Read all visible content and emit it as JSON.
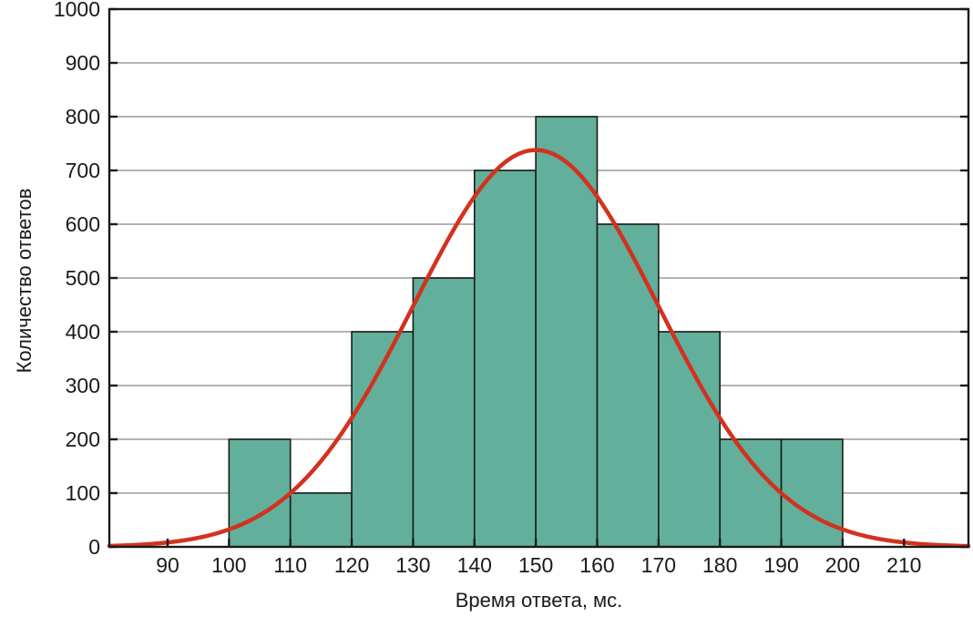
{
  "chart_data": {
    "type": "bar",
    "subtype": "histogram with fitted normal curve",
    "title": "",
    "xlabel": "Время ответа, мс.",
    "ylabel": "Количество ответов",
    "xlim": [
      80.5,
      220.5
    ],
    "ylim": [
      0,
      1000
    ],
    "grid": true,
    "legend": "none",
    "x_ticks": [
      "90",
      "100",
      "110",
      "120",
      "130",
      "140",
      "150",
      "160",
      "170",
      "180",
      "190",
      "200",
      "210"
    ],
    "y_ticks": [
      "0",
      "100",
      "200",
      "300",
      "400",
      "500",
      "600",
      "700",
      "800",
      "900",
      "1000"
    ],
    "bins": [
      {
        "from": 100,
        "to": 110,
        "value": 200
      },
      {
        "from": 110,
        "to": 120,
        "value": 100
      },
      {
        "from": 120,
        "to": 130,
        "value": 400
      },
      {
        "from": 130,
        "to": 140,
        "value": 500
      },
      {
        "from": 140,
        "to": 150,
        "value": 700
      },
      {
        "from": 150,
        "to": 160,
        "value": 800
      },
      {
        "from": 160,
        "to": 170,
        "value": 600
      },
      {
        "from": 170,
        "to": 180,
        "value": 400
      },
      {
        "from": 180,
        "to": 190,
        "value": 200
      },
      {
        "from": 190,
        "to": 200,
        "value": 200
      }
    ],
    "curve": {
      "type": "normal",
      "mean": 150,
      "sd": 20,
      "peak": 738
    },
    "colors": {
      "bar_fill": "#62b09b",
      "bar_edge": "#1a1a1a",
      "curve": "#d2321f",
      "grid": "#9a9a9a"
    }
  }
}
